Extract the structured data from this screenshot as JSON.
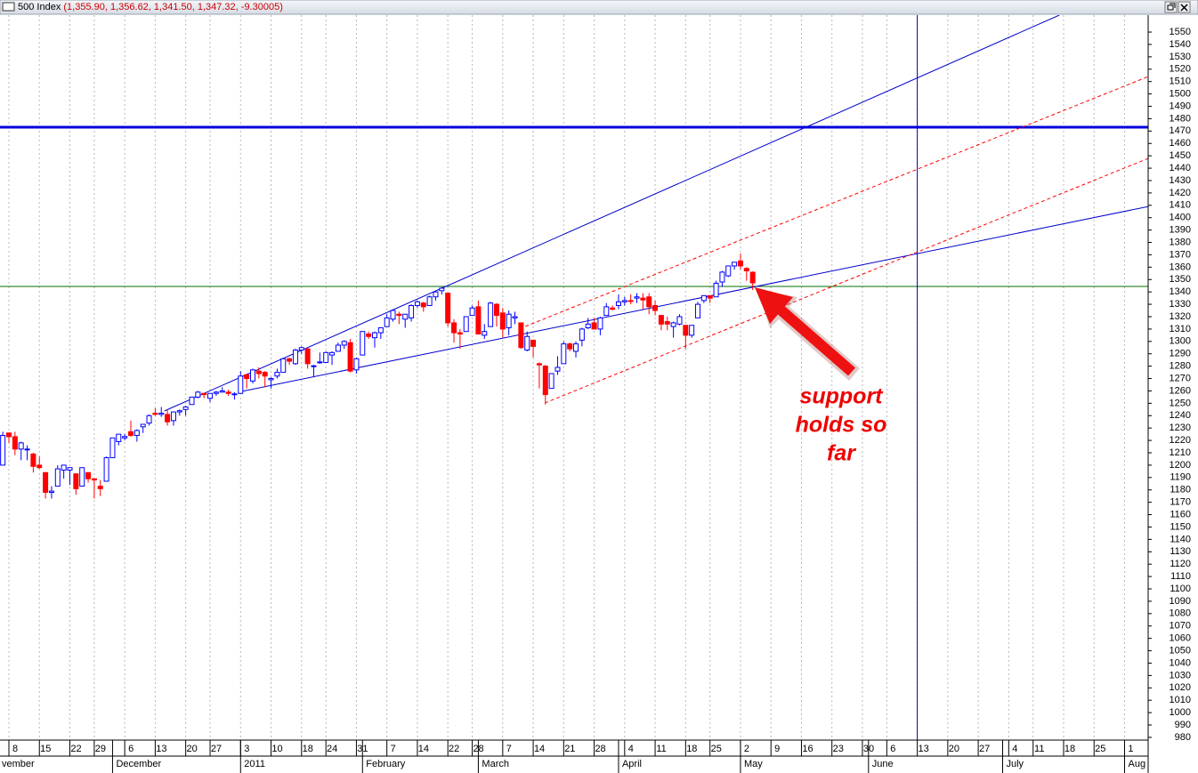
{
  "chart_data": {
    "type": "candlestick",
    "title": "500 Index",
    "title_values": "(1,355.90, 1,356.62, 1,341.50, 1,347.32, -9.30005)",
    "up_color": "#0000ff",
    "down_color": "#ff0000",
    "x": [
      -1,
      0,
      1,
      2,
      3,
      4,
      5,
      6,
      7,
      8,
      9,
      10,
      11,
      12,
      13,
      14,
      15,
      16,
      17,
      18,
      19,
      20,
      21,
      22,
      23,
      24,
      25,
      26,
      27,
      28,
      29,
      30,
      31,
      32,
      33,
      34,
      35,
      36,
      37,
      38,
      39,
      40,
      41,
      42,
      43,
      44,
      45,
      46,
      47,
      48,
      49,
      50,
      51,
      52,
      53,
      54,
      55,
      56,
      57,
      58,
      59,
      60,
      61,
      62,
      63,
      64,
      65,
      66,
      67,
      68,
      69,
      70,
      71,
      72,
      73,
      74,
      75,
      76,
      77,
      78,
      79,
      80,
      81,
      82,
      83,
      84,
      85,
      86,
      87,
      88,
      89,
      90,
      91,
      92,
      93,
      94,
      95,
      96,
      97,
      98,
      99,
      100,
      101,
      102,
      103,
      104,
      105,
      106,
      107,
      108,
      109,
      110,
      111,
      112,
      113,
      114,
      115,
      116,
      117,
      118,
      119,
      120,
      121,
      122
    ],
    "open": [
      1200,
      1226,
      1223,
      1213,
      1213,
      1209,
      1200,
      1194,
      1178,
      1183,
      1196,
      1196,
      1193,
      1183,
      1194,
      1189,
      1183,
      1187,
      1206,
      1219,
      1222,
      1227,
      1224,
      1231,
      1234,
      1242,
      1241,
      1241,
      1236,
      1243,
      1245,
      1249,
      1255,
      1258,
      1254,
      1258,
      1259,
      1259,
      1257,
      1258,
      1273,
      1268,
      1276,
      1275,
      1269,
      1272,
      1275,
      1286,
      1282,
      1293,
      1294,
      1280,
      1283,
      1283,
      1289,
      1292,
      1297,
      1299,
      1277,
      1289,
      1306,
      1303,
      1307,
      1312,
      1318,
      1322,
      1318,
      1319,
      1329,
      1331,
      1329,
      1336,
      1341,
      1339,
      1315,
      1307,
      1308,
      1321,
      1328,
      1305,
      1312,
      1330,
      1323,
      1311,
      1319,
      1315,
      1293,
      1301,
      1282,
      1280,
      1262,
      1276,
      1282,
      1298,
      1292,
      1301,
      1311,
      1315,
      1310,
      1321,
      1327,
      1329,
      1332,
      1333,
      1335,
      1335,
      1336,
      1329,
      1321,
      1316,
      1312,
      1314,
      1313,
      1305,
      1319,
      1333,
      1337,
      1336,
      1348,
      1353,
      1361,
      1365,
      1359,
      1355.9
    ],
    "high": [
      1227,
      1226,
      1227,
      1219,
      1216,
      1210,
      1207,
      1194,
      1183,
      1200,
      1200,
      1198,
      1193,
      1198,
      1194,
      1189,
      1188,
      1207,
      1222,
      1225,
      1225,
      1236,
      1229,
      1233,
      1241,
      1246,
      1247,
      1245,
      1243,
      1245,
      1248,
      1255,
      1260,
      1258,
      1258,
      1260,
      1263,
      1261,
      1259,
      1276,
      1274,
      1278,
      1279,
      1276,
      1271,
      1278,
      1286,
      1287,
      1294,
      1296,
      1294,
      1281,
      1291,
      1292,
      1292,
      1299,
      1301,
      1302,
      1287,
      1308,
      1308,
      1308,
      1311,
      1322,
      1325,
      1324,
      1322,
      1330,
      1333,
      1332,
      1337,
      1341,
      1344,
      1339,
      1318,
      1310,
      1320,
      1329,
      1333,
      1314,
      1332,
      1331,
      1327,
      1325,
      1324,
      1315,
      1308,
      1301,
      1283,
      1281,
      1274,
      1288,
      1300,
      1299,
      1300,
      1311,
      1319,
      1319,
      1320,
      1331,
      1329,
      1338,
      1336,
      1338,
      1339,
      1339,
      1339,
      1333,
      1321,
      1320,
      1316,
      1322,
      1313,
      1312,
      1332,
      1337,
      1337,
      1349,
      1357,
      1361,
      1364,
      1371,
      1360,
      1356.62
    ],
    "low": [
      1200,
      1218,
      1208,
      1204,
      1204,
      1194,
      1197,
      1173,
      1173,
      1183,
      1189,
      1184,
      1176,
      1183,
      1186,
      1173,
      1175,
      1187,
      1206,
      1216,
      1220,
      1223,
      1219,
      1226,
      1232,
      1240,
      1239,
      1232,
      1232,
      1240,
      1240,
      1249,
      1254,
      1254,
      1251,
      1256,
      1259,
      1256,
      1253,
      1258,
      1262,
      1266,
      1270,
      1263,
      1262,
      1270,
      1275,
      1281,
      1281,
      1290,
      1278,
      1271,
      1282,
      1283,
      1281,
      1292,
      1294,
      1275,
      1274,
      1289,
      1302,
      1295,
      1302,
      1312,
      1316,
      1314,
      1311,
      1316,
      1327,
      1324,
      1329,
      1333,
      1338,
      1312,
      1299,
      1294,
      1308,
      1321,
      1306,
      1302,
      1312,
      1312,
      1303,
      1305,
      1314,
      1294,
      1292,
      1287,
      1262,
      1249,
      1262,
      1273,
      1282,
      1292,
      1287,
      1296,
      1310,
      1310,
      1305,
      1321,
      1325,
      1326,
      1329,
      1330,
      1331,
      1326,
      1322,
      1321,
      1309,
      1309,
      1303,
      1313,
      1294,
      1303,
      1319,
      1331,
      1331,
      1336,
      1344,
      1352,
      1358,
      1358,
      1349,
      1341.5
    ],
    "close": [
      1224,
      1223,
      1213,
      1218,
      1213,
      1199,
      1198,
      1178,
      1179,
      1197,
      1200,
      1198,
      1181,
      1198,
      1189,
      1188,
      1181,
      1206,
      1222,
      1225,
      1223.1,
      1224,
      1228,
      1233,
      1240,
      1241,
      1242,
      1235,
      1243,
      1244,
      1247,
      1255,
      1259,
      1257,
      1258,
      1259,
      1260,
      1258,
      1257.6,
      1272,
      1270,
      1277,
      1274,
      1272,
      1270,
      1275,
      1286,
      1284,
      1293,
      1295,
      1282,
      1280.3,
      1283.4,
      1291,
      1291,
      1297,
      1300,
      1276,
      1286,
      1308,
      1304,
      1307,
      1311,
      1319,
      1325,
      1321,
      1322,
      1329,
      1332,
      1328,
      1336,
      1340,
      1343,
      1315,
      1307,
      1306,
      1320,
      1327,
      1306,
      1308,
      1331,
      1321,
      1310,
      1322,
      1320,
      1295,
      1304,
      1296,
      1281,
      1257,
      1274,
      1279,
      1298,
      1294,
      1298,
      1310,
      1314,
      1310,
      1319,
      1328,
      1326,
      1332,
      1333,
      1332.6,
      1336,
      1333.5,
      1328,
      1325,
      1314,
      1314,
      1315,
      1320,
      1305,
      1313,
      1330,
      1337,
      1335,
      1347,
      1356,
      1361,
      1364,
      1361,
      1357,
      1347.32
    ],
    "xlim": [
      -1.46,
      186.87
    ],
    "ylim": [
      977.8,
      1563.7
    ],
    "xticks": [
      {
        "value": 0,
        "label": "8"
      },
      {
        "value": 5,
        "label": "15"
      },
      {
        "value": 10,
        "label": "22"
      },
      {
        "value": 14,
        "label": "29"
      },
      {
        "value": 19,
        "label": "6"
      },
      {
        "value": 24,
        "label": "13"
      },
      {
        "value": 29,
        "label": "20"
      },
      {
        "value": 33,
        "label": "27"
      },
      {
        "value": 38,
        "label": "3"
      },
      {
        "value": 43,
        "label": "10"
      },
      {
        "value": 48,
        "label": "18"
      },
      {
        "value": 52,
        "label": "24"
      },
      {
        "value": 57,
        "label": "31"
      },
      {
        "value": 62,
        "label": "7"
      },
      {
        "value": 67,
        "label": "14"
      },
      {
        "value": 72,
        "label": "22"
      },
      {
        "value": 76,
        "label": "28"
      },
      {
        "value": 81,
        "label": "7"
      },
      {
        "value": 86,
        "label": "14"
      },
      {
        "value": 91,
        "label": "21"
      },
      {
        "value": 96,
        "label": "28"
      },
      {
        "value": 101,
        "label": "4"
      },
      {
        "value": 106,
        "label": "11"
      },
      {
        "value": 111,
        "label": "18"
      },
      {
        "value": 115,
        "label": "25"
      },
      {
        "value": 120,
        "label": "2"
      },
      {
        "value": 125,
        "label": "9"
      },
      {
        "value": 130,
        "label": "16"
      },
      {
        "value": 135,
        "label": "23"
      },
      {
        "value": 140,
        "label": "30"
      },
      {
        "value": 144,
        "label": "6"
      },
      {
        "value": 149,
        "label": "13"
      },
      {
        "value": 154,
        "label": "20"
      },
      {
        "value": 159,
        "label": "27"
      },
      {
        "value": 164,
        "label": "4"
      },
      {
        "value": 168,
        "label": "11"
      },
      {
        "value": 173,
        "label": "18"
      },
      {
        "value": 178,
        "label": "25"
      },
      {
        "value": 183,
        "label": "1"
      }
    ],
    "month_labels": [
      {
        "value": -5,
        "label": "vember"
      },
      {
        "value": 17,
        "label": "December"
      },
      {
        "value": 38,
        "label": "2011"
      },
      {
        "value": 58,
        "label": "February"
      },
      {
        "value": 77,
        "label": "March"
      },
      {
        "value": 100,
        "label": "April"
      },
      {
        "value": 120,
        "label": "May"
      },
      {
        "value": 141,
        "label": "June"
      },
      {
        "value": 163,
        "label": "July"
      },
      {
        "value": 183,
        "label": "Aug"
      }
    ],
    "yticks": [
      980,
      990,
      1000,
      1010,
      1020,
      1030,
      1040,
      1050,
      1060,
      1070,
      1080,
      1090,
      1100,
      1110,
      1120,
      1130,
      1140,
      1150,
      1160,
      1170,
      1180,
      1190,
      1200,
      1210,
      1220,
      1230,
      1240,
      1250,
      1260,
      1270,
      1280,
      1290,
      1300,
      1310,
      1320,
      1330,
      1340,
      1350,
      1360,
      1370,
      1380,
      1390,
      1400,
      1410,
      1420,
      1430,
      1440,
      1450,
      1460,
      1470,
      1480,
      1490,
      1500,
      1510,
      1520,
      1530,
      1540,
      1550
    ],
    "grid": true,
    "trendlines": [
      {
        "x": [
          25.5,
          172.3
        ],
        "y": [
          1243.8,
          1563.7
        ],
        "color": "#0000cc",
        "style": "solid"
      },
      {
        "x": [
          38.2,
          186.87
        ],
        "y": [
          1259.6,
          1409
        ],
        "color": "#0000cc",
        "style": "solid"
      },
      {
        "x": [
          84.7,
          186.87
        ],
        "y": [
          1312.1,
          1514
        ],
        "color": "#ff0000",
        "style": "dashed"
      },
      {
        "x": [
          87.9,
          186.87
        ],
        "y": [
          1250.2,
          1447.9
        ],
        "color": "#ff0000",
        "style": "dashed"
      }
    ],
    "hlines": [
      {
        "y": 1473.1,
        "color": "#0000dd",
        "style": "thick"
      },
      {
        "y": 1344.4,
        "color": "#007000",
        "style": "solid"
      }
    ],
    "vlines": [
      {
        "x": 149,
        "color": "#0000aa",
        "style": "solid"
      }
    ],
    "annotation": [
      "support",
      "holds so",
      "far"
    ]
  }
}
